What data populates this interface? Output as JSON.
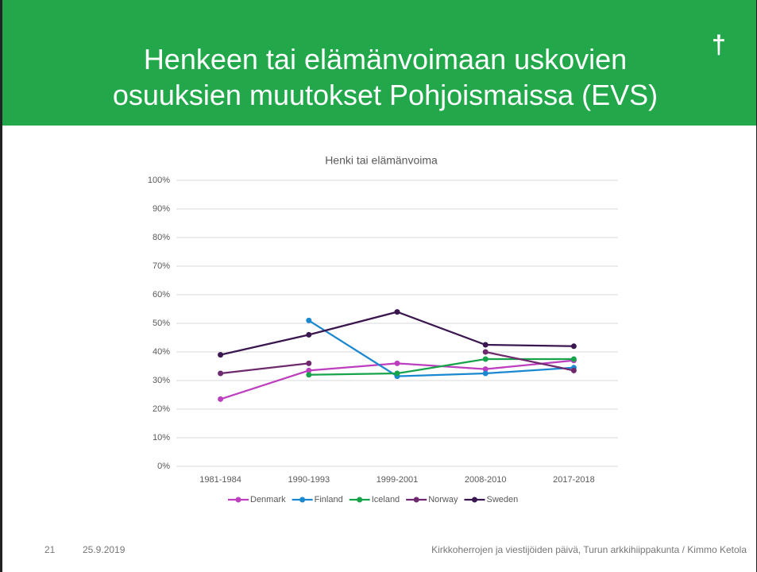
{
  "slide": {
    "title": "Henkeen tai elämänvoimaan uskovien osuuksien muutokset Pohjoismaissa (EVS)",
    "symbol": "†",
    "footer": {
      "page": "21",
      "date": "25.9.2019",
      "text": "Kirkkoherrojen ja viestijöiden päivä, Turun arkkihiippakunta / Kimmo Ketola"
    }
  },
  "chart_data": {
    "type": "line",
    "title": "Henki tai elämänvoima",
    "categories": [
      "1981-1984",
      "1990-1993",
      "1999-2001",
      "2008-2010",
      "2017-2018"
    ],
    "series": [
      {
        "name": "Denmark",
        "color": "#bd3fbf",
        "values": [
          23.5,
          33.5,
          36,
          34,
          37
        ]
      },
      {
        "name": "Finland",
        "color": "#1a88d0",
        "values": [
          null,
          51,
          31.5,
          32.5,
          34.5
        ]
      },
      {
        "name": "Iceland",
        "color": "#17a34a",
        "values": [
          null,
          32,
          32.5,
          37.5,
          37.5
        ]
      },
      {
        "name": "Norway",
        "color": "#6e2a6c",
        "values": [
          32.5,
          36,
          null,
          40,
          33.5
        ]
      },
      {
        "name": "Sweden",
        "color": "#3b1750",
        "values": [
          39,
          46,
          54,
          42.5,
          42
        ]
      }
    ],
    "ylim": [
      0,
      100
    ],
    "yticks": [
      {
        "value": 0,
        "label": "0%"
      },
      {
        "value": 10,
        "label": "10%"
      },
      {
        "value": 20,
        "label": "20%"
      },
      {
        "value": 30,
        "label": "30%"
      },
      {
        "value": 40,
        "label": "40%"
      },
      {
        "value": 50,
        "label": "50%"
      },
      {
        "value": 60,
        "label": "60%"
      },
      {
        "value": 70,
        "label": "70%"
      },
      {
        "value": 80,
        "label": "80%"
      },
      {
        "value": 90,
        "label": "90%"
      },
      {
        "value": 100,
        "label": "100%"
      }
    ],
    "grid": true,
    "legend": "bottom"
  }
}
